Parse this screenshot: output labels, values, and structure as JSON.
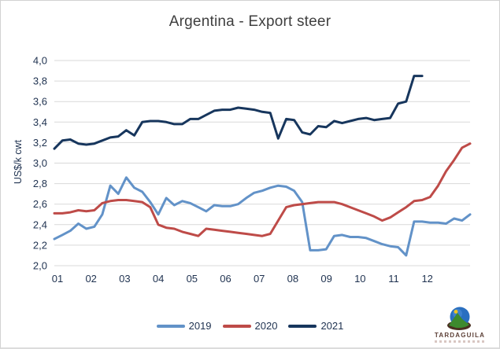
{
  "chart_data": {
    "type": "line",
    "title": "Argentina - Export steer",
    "ylabel": "US$/k cwt",
    "ylim": [
      2.0,
      4.0
    ],
    "grid": true,
    "grid_color": "#d9d9d9",
    "axis_color": "#1f3250",
    "legend_position": "bottom",
    "x_count": 53,
    "x_tick_labels": [
      "01",
      "02",
      "03",
      "04",
      "05",
      "06",
      "07",
      "08",
      "09",
      "10",
      "11",
      "12"
    ],
    "y_ticks": {
      "values": [
        4.0,
        3.8,
        3.6,
        3.4,
        3.2,
        3.0,
        2.8,
        2.6,
        2.4,
        2.2,
        2.0
      ],
      "labels": [
        "4,0",
        "3,8",
        "3,6",
        "3,4",
        "3,2",
        "3,0",
        "2,8",
        "2,6",
        "2,4",
        "2,2",
        "2,0"
      ]
    },
    "series": [
      {
        "name": "2019",
        "color": "#6292c8",
        "values": [
          2.26,
          2.3,
          2.34,
          2.41,
          2.36,
          2.38,
          2.5,
          2.78,
          2.7,
          2.86,
          2.76,
          2.72,
          2.62,
          2.5,
          2.66,
          2.59,
          2.63,
          2.61,
          2.57,
          2.53,
          2.59,
          2.58,
          2.58,
          2.6,
          2.66,
          2.71,
          2.73,
          2.76,
          2.78,
          2.77,
          2.73,
          2.62,
          2.15,
          2.15,
          2.16,
          2.29,
          2.3,
          2.28,
          2.28,
          2.27,
          2.24,
          2.21,
          2.19,
          2.18,
          2.1,
          2.43,
          2.43,
          2.42,
          2.42,
          2.41,
          2.46,
          2.44,
          2.5
        ]
      },
      {
        "name": "2020",
        "color": "#be4b48",
        "values": [
          2.51,
          2.51,
          2.52,
          2.54,
          2.53,
          2.54,
          2.61,
          2.63,
          2.64,
          2.64,
          2.63,
          2.62,
          2.57,
          2.4,
          2.37,
          2.36,
          2.33,
          2.31,
          2.29,
          2.36,
          2.35,
          2.34,
          2.33,
          2.32,
          2.31,
          2.3,
          2.29,
          2.31,
          2.44,
          2.57,
          2.59,
          2.6,
          2.61,
          2.62,
          2.62,
          2.62,
          2.6,
          2.57,
          2.54,
          2.51,
          2.48,
          2.44,
          2.47,
          2.52,
          2.57,
          2.63,
          2.64,
          2.67,
          2.78,
          2.92,
          3.03,
          3.15,
          3.19
        ]
      },
      {
        "name": "2021",
        "color": "#17365d",
        "values": [
          3.14,
          3.22,
          3.23,
          3.19,
          3.18,
          3.19,
          3.22,
          3.25,
          3.26,
          3.32,
          3.27,
          3.4,
          3.41,
          3.41,
          3.4,
          3.38,
          3.38,
          3.43,
          3.43,
          3.47,
          3.51,
          3.52,
          3.52,
          3.54,
          3.53,
          3.52,
          3.5,
          3.49,
          3.24,
          3.43,
          3.42,
          3.3,
          3.28,
          3.36,
          3.35,
          3.41,
          3.39,
          3.41,
          3.43,
          3.44,
          3.42,
          3.43,
          3.44,
          3.58,
          3.6,
          3.85,
          3.85
        ]
      }
    ]
  },
  "branding": {
    "logo_text": "TARDAGUILA"
  }
}
